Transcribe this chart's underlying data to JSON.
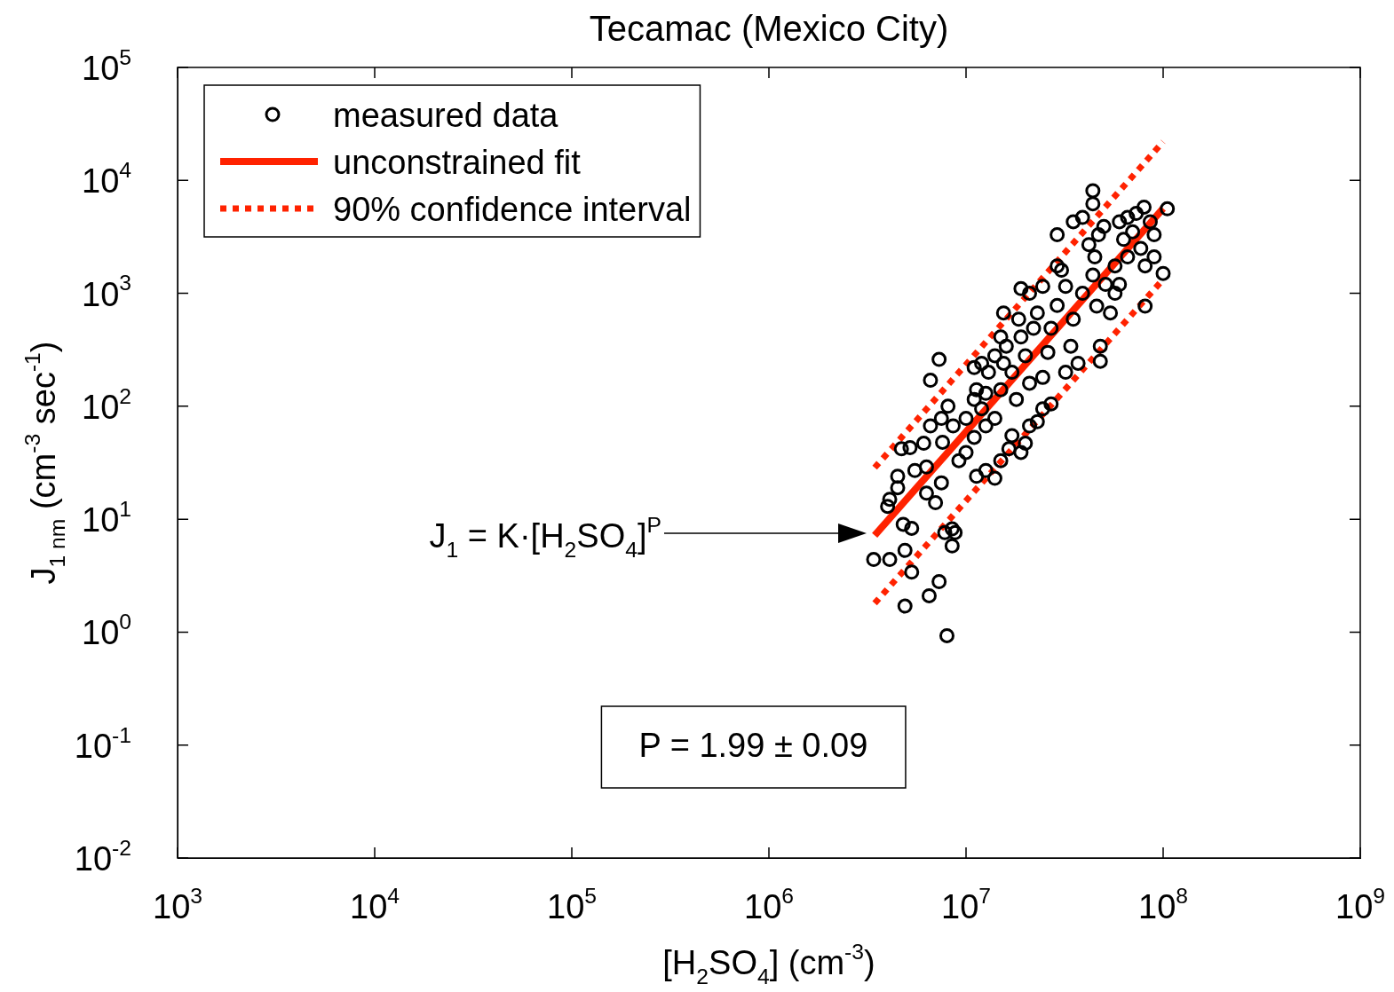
{
  "chart_data": {
    "type": "scatter",
    "title": "Tecamac (Mexico City)",
    "xlabel": "[H$_{2}$SO$_{4}$] (cm$^{-3}$)",
    "ylabel": "J$_{1 nm}$ (cm$^{-3}$ sec$^{-1}$)",
    "log": "xy",
    "grid": false,
    "legend": "top left",
    "xlim": [
      1000,
      1000000000
    ],
    "ylim": [
      0.01,
      100000
    ],
    "xticks": [
      {
        "value": 1000,
        "label": "10$^{3}$"
      },
      {
        "value": 10000,
        "label": "10$^{4}$"
      },
      {
        "value": 100000,
        "label": "10$^{5}$"
      },
      {
        "value": 1000000,
        "label": "10$^{6}$"
      },
      {
        "value": 10000000,
        "label": "10$^{7}$"
      },
      {
        "value": 100000000,
        "label": "10$^{8}$"
      },
      {
        "value": 1000000000,
        "label": "10$^{9}$"
      }
    ],
    "yticks": [
      {
        "value": 0.01,
        "label": "10$^{-2}$"
      },
      {
        "value": 0.1,
        "label": "10$^{-1}$"
      },
      {
        "value": 1,
        "label": "10$^{0}$"
      },
      {
        "value": 10,
        "label": "10$^{1}$"
      },
      {
        "value": 100,
        "label": "10$^{2}$"
      },
      {
        "value": 1000,
        "label": "10$^{3}$"
      },
      {
        "value": 10000,
        "label": "10$^{4}$"
      },
      {
        "value": 100000,
        "label": "10$^{5}$"
      }
    ],
    "series": [
      {
        "name": "measured data",
        "marker": "circle",
        "color": "#000000",
        "x": [
          3400000,
          4100000,
          4900000,
          5300000,
          4900000,
          6500000,
          7300000,
          8000000,
          4000000,
          4500000,
          4500000,
          4100000,
          4800000,
          5300000,
          4700000,
          5200000,
          5500000,
          6300000,
          6100000,
          6300000,
          7000000,
          7500000,
          7600000,
          7800000,
          8500000,
          8800000,
          8500000,
          6600000,
          7300000,
          6600000,
          7500000,
          8100000,
          8600000,
          9200000,
          10000000,
          11000000,
          11300000,
          12600000,
          14000000,
          15000000,
          16500000,
          19000000,
          20000000,
          21000000,
          23000000,
          24500000,
          27000000,
          17100000,
          10000000,
          11000000,
          11300000,
          12000000,
          12600000,
          13000000,
          12600000,
          14000000,
          15000000,
          15500000,
          14000000,
          16000000,
          17100000,
          18000000,
          19000000,
          18500000,
          20000000,
          21000000,
          22000000,
          23000000,
          21000000,
          19000000,
          24500000,
          26000000,
          27000000,
          29000000,
          29000000,
          30500000,
          32000000,
          34000000,
          35000000,
          37000000,
          29000000,
          35000000,
          39000000,
          42000000,
          44000000,
          44000000,
          45000000,
          44000000,
          46000000,
          48000000,
          48000000,
          47000000,
          50000000,
          54000000,
          57000000,
          57000000,
          60000000,
          63000000,
          66000000,
          66000000,
          70000000,
          73000000,
          77000000,
          80000000,
          81000000,
          81000000,
          86000000,
          90000000,
          90000000,
          100000000,
          105000000,
          60000000,
          51000000,
          39000000,
          32000000,
          24500000,
          15500000,
          15000000,
          12000000,
          11000000
        ],
        "values": [
          4.4,
          4.4,
          5.3,
          3.4,
          1.7,
          2.1,
          2.8,
          0.93,
          13,
          19,
          24,
          15,
          9,
          8.3,
          42,
          43,
          27,
          29,
          47,
          17,
          14,
          21,
          48,
          7.6,
          8.2,
          7.6,
          5.8,
          170,
          260,
          67,
          78,
          100,
          67,
          33,
          39,
          53,
          24,
          27,
          23,
          33,
          42,
          39,
          47,
          67,
          73,
          95,
          105,
          55,
          78,
          115,
          140,
          95,
          130,
          200,
          67,
          78,
          140,
          240,
          280,
          340,
          200,
          115,
          410,
          590,
          280,
          160,
          490,
          670,
          1000,
          1100,
          1150,
          300,
          490,
          780,
          1750,
          1600,
          1150,
          340,
          590,
          240,
          3300,
          4300,
          4700,
          2700,
          8100,
          6200,
          2100,
          1450,
          770,
          340,
          250,
          3300,
          3900,
          670,
          1000,
          1750,
          4300,
          3000,
          4700,
          2100,
          3500,
          5100,
          2500,
          5800,
          1750,
          770,
          4300,
          3300,
          2100,
          1500,
          5600,
          1200,
          1200,
          1000,
          200,
          180,
          670,
          410,
          240,
          220
        ]
      },
      {
        "name": "unconstrained fit",
        "type": "line",
        "marker": "none",
        "line_style": "solid",
        "color": "#ff2200",
        "x": [
          3440000,
          100000000
        ],
        "values": [
          7.2,
          5640
        ]
      },
      {
        "name": "90% confidence interval",
        "type": "line",
        "marker": "none",
        "line_style": "dotted",
        "color": "#ff2200",
        "x": [
          3440000,
          100000000
        ],
        "values": [
          28.6,
          22000
        ]
      },
      {
        "type": "line",
        "marker": "none",
        "line_style": "dotted",
        "color": "#ff2200",
        "x": [
          3440000,
          100000000
        ],
        "values": [
          1.8,
          1330
        ]
      }
    ],
    "annotations": [
      "J$_{1}$ = K·[H$_{2}$SO$_{4}$]$^{P}$",
      "P = 1.99 ± 0.09"
    ]
  }
}
